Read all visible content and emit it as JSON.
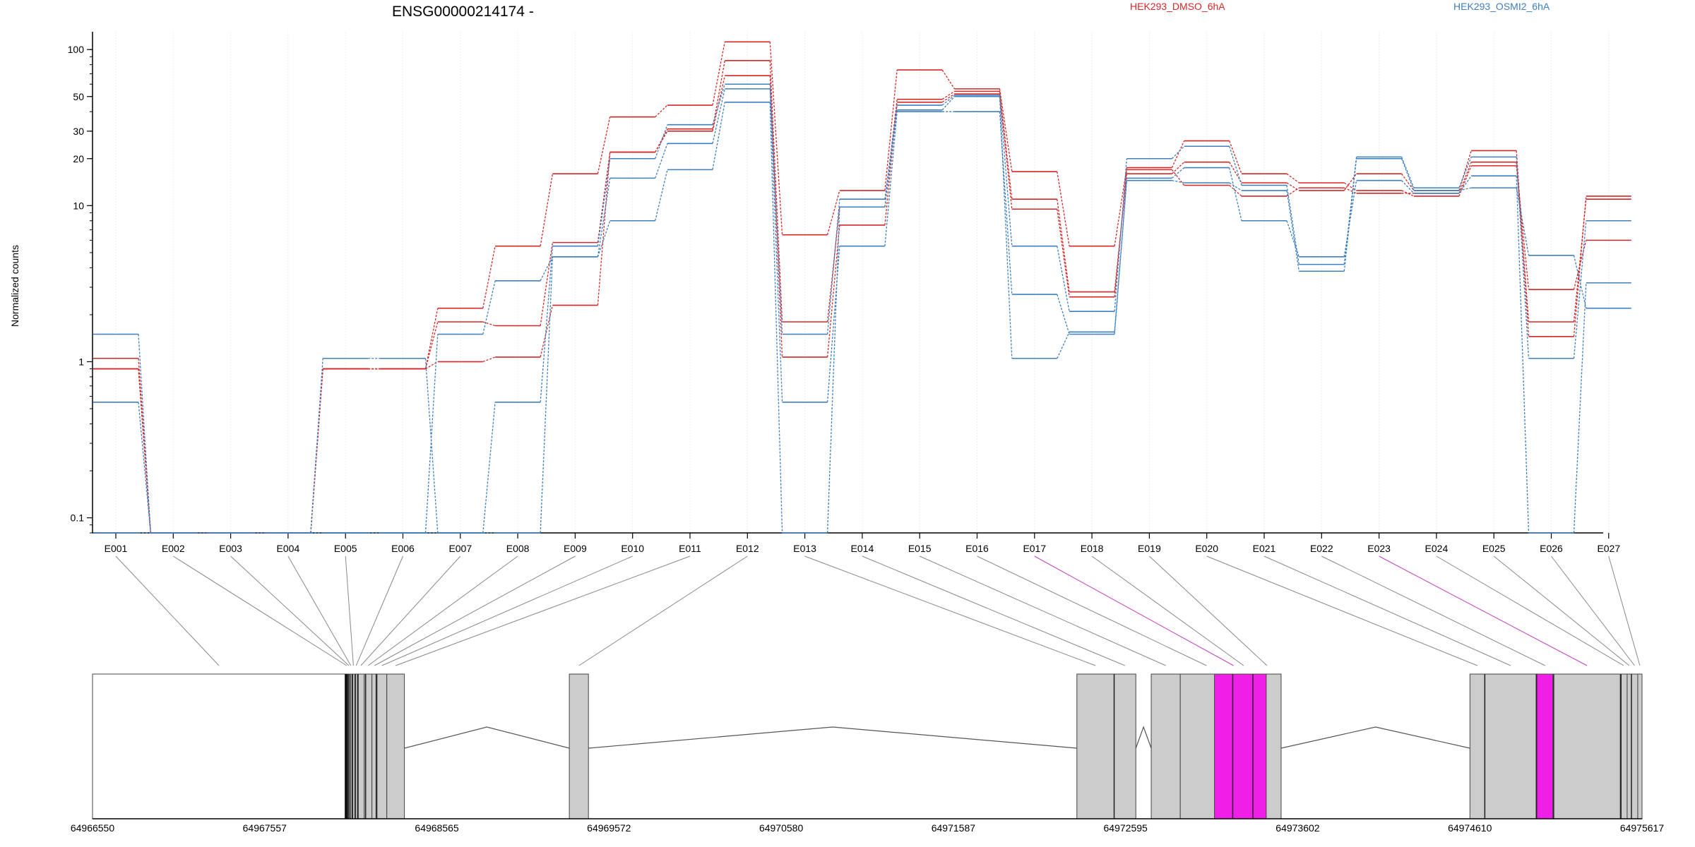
{
  "chart_data": {
    "type": "line",
    "title": "ENSG00000214174 -",
    "ylabel": "Normalized counts",
    "yscale": "log",
    "ylim": [
      0.08,
      130
    ],
    "yticks": [
      0.1,
      1,
      10,
      20,
      30,
      50,
      100
    ],
    "ytick_labels": [
      "0.1",
      "1",
      "10",
      "20",
      "30",
      "50",
      "100"
    ],
    "categories": [
      "E001",
      "E002",
      "E003",
      "E004",
      "E005",
      "E006",
      "E007",
      "E008",
      "E009",
      "E010",
      "E011",
      "E012",
      "E013",
      "E014",
      "E015",
      "E016",
      "E017",
      "E018",
      "E019",
      "E020",
      "E021",
      "E022",
      "E023",
      "E024",
      "E025",
      "E026",
      "E027"
    ],
    "legend": [
      {
        "name": "HEK293_DMSO_6hA",
        "color": "#d62728"
      },
      {
        "name": "HEK293_OSMI2_6hA",
        "color": "#3f7fbf"
      }
    ],
    "series": [
      {
        "group": "HEK293_DMSO_6hA",
        "color": "#d62728",
        "values": [
          0.9,
          0.08,
          0.08,
          0.08,
          0.9,
          0.9,
          1.0,
          1.07,
          2.3,
          22,
          30,
          68,
          1.07,
          7.5,
          46,
          52,
          9.5,
          2.6,
          17,
          13.5,
          11.5,
          13,
          12,
          12,
          19,
          1.8,
          11
        ]
      },
      {
        "group": "HEK293_DMSO_6hA",
        "color": "#d62728",
        "values": [
          1.05,
          0.08,
          0.08,
          0.08,
          0.9,
          0.9,
          1.8,
          1.7,
          5.8,
          22,
          31,
          85,
          1.8,
          9.8,
          48,
          54,
          11,
          2.8,
          16,
          19,
          14,
          12.5,
          16,
          12.5,
          22.5,
          1.45,
          11.5
        ]
      },
      {
        "group": "HEK293_DMSO_6hA",
        "color": "#d62728",
        "values": [
          0.9,
          0.08,
          0.08,
          0.08,
          0.9,
          0.9,
          2.2,
          5.5,
          16,
          37,
          44,
          112,
          6.5,
          12.5,
          74,
          56,
          16.5,
          5.5,
          17.5,
          26,
          16,
          14,
          12.5,
          11.5,
          18,
          2.9,
          6
        ]
      },
      {
        "group": "HEK293_OSMI2_6hA",
        "color": "#3f7fbf",
        "values": [
          0.55,
          0.08,
          0.08,
          0.08,
          1.05,
          1.05,
          0.08,
          0.55,
          5.5,
          20,
          33,
          60,
          1.5,
          11,
          44,
          51,
          5.5,
          2.1,
          20,
          24,
          13.5,
          4.2,
          20.5,
          13,
          20.5,
          1.05,
          8
        ]
      },
      {
        "group": "HEK293_OSMI2_6hA",
        "color": "#3f7fbf",
        "values": [
          1.5,
          0.08,
          0.08,
          0.08,
          0.08,
          0.08,
          1.5,
          3.3,
          4.7,
          15,
          25,
          56,
          0.55,
          5.5,
          40,
          40,
          2.7,
          1.5,
          15,
          17.5,
          8,
          4.7,
          14.5,
          12,
          15.5,
          0.08,
          3.2
        ]
      },
      {
        "group": "HEK293_OSMI2_6hA",
        "color": "#3f7fbf",
        "values": [
          0.08,
          0.08,
          0.08,
          0.08,
          0.08,
          0.08,
          0.08,
          0.08,
          4.7,
          8,
          17,
          46,
          0.08,
          9.8,
          41,
          50,
          1.05,
          1.55,
          14.5,
          14,
          12.5,
          3.8,
          20,
          12.5,
          13,
          4.8,
          2.2
        ]
      }
    ],
    "gene_model": {
      "coordinate_labels": [
        "64966550",
        "64967557",
        "64968565",
        "64969572",
        "64970580",
        "64971587",
        "64972595",
        "64973602",
        "64974610",
        "64975617"
      ],
      "coord_range": [
        64966550,
        64975617
      ],
      "exon_color": "#cccccc",
      "highlight_color": "#f01fe8",
      "highlighted_exons": [
        "E017",
        "E023"
      ],
      "exons": [
        {
          "id": "E001",
          "start": 64966550,
          "end": 64968030
        },
        {
          "id": "E002",
          "start": 64968030,
          "end": 64968045
        },
        {
          "id": "E003",
          "start": 64968045,
          "end": 64968055
        },
        {
          "id": "E004",
          "start": 64968055,
          "end": 64968068
        },
        {
          "id": "E005",
          "start": 64968068,
          "end": 64968085
        },
        {
          "id": "E006",
          "start": 64968085,
          "end": 64968100
        },
        {
          "id": "E007",
          "start": 64968100,
          "end": 64968140
        },
        {
          "id": "E008",
          "start": 64968140,
          "end": 64968185
        },
        {
          "id": "E009",
          "start": 64968185,
          "end": 64968215
        },
        {
          "id": "E010",
          "start": 64968215,
          "end": 64968272
        },
        {
          "id": "E011",
          "start": 64968272,
          "end": 64968375
        },
        {
          "id": "E012",
          "start": 64969340,
          "end": 64969452
        },
        {
          "id": "E013",
          "start": 64972310,
          "end": 64972528
        },
        {
          "id": "E014",
          "start": 64972528,
          "end": 64972655
        },
        {
          "id": "E015",
          "start": 64972745,
          "end": 64972915
        },
        {
          "id": "E016",
          "start": 64972915,
          "end": 64973222
        },
        {
          "id": "E017",
          "start": 64973222,
          "end": 64973232
        },
        {
          "id": "E018",
          "start": 64973232,
          "end": 64973340
        },
        {
          "id": "E019",
          "start": 64973340,
          "end": 64973505
        },
        {
          "id": "E020",
          "start": 64974610,
          "end": 64974697
        },
        {
          "id": "E021",
          "start": 64974697,
          "end": 64975000
        },
        {
          "id": "E022",
          "start": 64975000,
          "end": 64975100
        },
        {
          "id": "E023",
          "start": 64975100,
          "end": 64975490
        },
        {
          "id": "E024",
          "start": 64975490,
          "end": 64975530
        },
        {
          "id": "E025",
          "start": 64975530,
          "end": 64975555
        },
        {
          "id": "E026",
          "start": 64975555,
          "end": 64975592
        },
        {
          "id": "E027",
          "start": 64975592,
          "end": 64975617
        }
      ],
      "pink_segments": [
        {
          "start": 64973115,
          "end": 64973418
        },
        {
          "start": 64974997,
          "end": 64975095
        }
      ],
      "introns": [
        {
          "start": 64968375,
          "end": 64969340
        },
        {
          "start": 64969452,
          "end": 64972310
        },
        {
          "start": 64972655,
          "end": 64972745
        },
        {
          "start": 64973505,
          "end": 64974610
        }
      ],
      "internal_lines": [
        64968034,
        64968047,
        64968057,
        64968072,
        64968088,
        64968104,
        64968148,
        64968210,
        64972528,
        64973222,
        64973340,
        64974697,
        64975000,
        64975100,
        64975494,
        64975555
      ]
    }
  }
}
